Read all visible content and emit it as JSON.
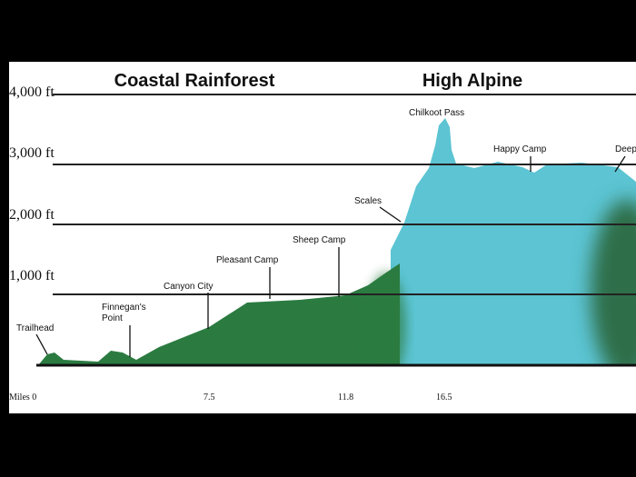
{
  "headings": {
    "left": "Coastal Rainforest",
    "right": "High Alpine"
  },
  "elevation_labels": [
    "4,000 ft",
    "3,000 ft",
    "2,000 ft",
    "1,000 ft"
  ],
  "distance_labels": [
    "Miles 0",
    "7.5",
    "11.8",
    "16.5"
  ],
  "landmarks": [
    "Trailhead",
    "Finnegan's",
    "Point",
    "Canyon City",
    "Pleasant Camp",
    "Sheep Camp",
    "Scales",
    "Chilkoot Pass",
    "Happy Camp",
    "Deep"
  ]
}
